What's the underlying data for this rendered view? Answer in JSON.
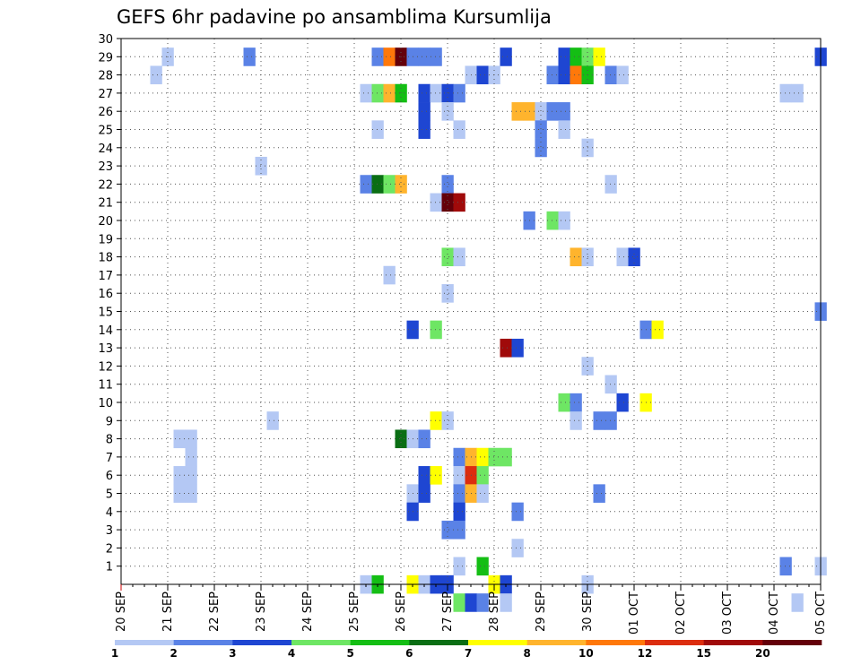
{
  "chart_data": {
    "type": "heatmap",
    "title": "GEFS 6hr padavine po ansamblima Kursumlija",
    "xlabel": "",
    "ylabel": "",
    "x_tick_labels": [
      "20 SEP",
      "21 SEP",
      "22 SEP",
      "23 SEP",
      "24 SEP",
      "25 SEP",
      "26 SEP",
      "27 SEP",
      "28 SEP",
      "29 SEP",
      "30 SEP",
      "01 OCT",
      "02 OCT",
      "03 OCT",
      "04 OCT",
      "05 OCT"
    ],
    "y_tick_labels": [
      "1",
      "2",
      "3",
      "4",
      "5",
      "6",
      "7",
      "8",
      "9",
      "10",
      "11",
      "12",
      "13",
      "14",
      "15",
      "16",
      "17",
      "18",
      "19",
      "20",
      "21",
      "22",
      "23",
      "24",
      "25",
      "26",
      "27",
      "28",
      "29",
      "30"
    ],
    "x_step_hours": 6,
    "ylim": [
      0,
      30
    ],
    "grid": true,
    "colorbar": {
      "labels": [
        "1",
        "2",
        "3",
        "4",
        "5",
        "6",
        "7",
        "8",
        "10",
        "12",
        "15",
        "20"
      ],
      "colors": [
        "#b4c8f4",
        "#5a82e6",
        "#1e46d2",
        "#6ee664",
        "#14be14",
        "#0a6e14",
        "#ffff00",
        "#ffb42d",
        "#ff780a",
        "#dc2d0f",
        "#a00a0a",
        "#64000a"
      ]
    },
    "cells": [
      {
        "member": 29,
        "step": 4,
        "level": 1
      },
      {
        "member": 29,
        "step": 11,
        "level": 2
      },
      {
        "member": 29,
        "step": 22,
        "level": 2
      },
      {
        "member": 29,
        "step": 23,
        "level": 9
      },
      {
        "member": 29,
        "step": 24,
        "level": 12
      },
      {
        "member": 29,
        "step": 25,
        "level": 2
      },
      {
        "member": 29,
        "step": 26,
        "level": 2
      },
      {
        "member": 29,
        "step": 27,
        "level": 2
      },
      {
        "member": 29,
        "step": 33,
        "level": 3
      },
      {
        "member": 29,
        "step": 38,
        "level": 3
      },
      {
        "member": 29,
        "step": 39,
        "level": 5
      },
      {
        "member": 29,
        "step": 40,
        "level": 4
      },
      {
        "member": 29,
        "step": 41,
        "level": 7
      },
      {
        "member": 29,
        "step": 60,
        "level": 3
      },
      {
        "member": 28,
        "step": 3,
        "level": 1
      },
      {
        "member": 28,
        "step": 30,
        "level": 1
      },
      {
        "member": 28,
        "step": 31,
        "level": 3
      },
      {
        "member": 28,
        "step": 32,
        "level": 1
      },
      {
        "member": 28,
        "step": 37,
        "level": 2
      },
      {
        "member": 28,
        "step": 38,
        "level": 3
      },
      {
        "member": 28,
        "step": 39,
        "level": 9
      },
      {
        "member": 28,
        "step": 40,
        "level": 5
      },
      {
        "member": 28,
        "step": 42,
        "level": 2
      },
      {
        "member": 28,
        "step": 43,
        "level": 1
      },
      {
        "member": 27,
        "step": 21,
        "level": 1
      },
      {
        "member": 27,
        "step": 22,
        "level": 4
      },
      {
        "member": 27,
        "step": 23,
        "level": 8
      },
      {
        "member": 27,
        "step": 24,
        "level": 5
      },
      {
        "member": 27,
        "step": 26,
        "level": 3
      },
      {
        "member": 27,
        "step": 27,
        "level": 1
      },
      {
        "member": 27,
        "step": 28,
        "level": 3
      },
      {
        "member": 27,
        "step": 29,
        "level": 2
      },
      {
        "member": 27,
        "step": 57,
        "level": 1
      },
      {
        "member": 27,
        "step": 58,
        "level": 1
      },
      {
        "member": 26,
        "step": 26,
        "level": 3
      },
      {
        "member": 26,
        "step": 28,
        "level": 1
      },
      {
        "member": 26,
        "step": 34,
        "level": 8
      },
      {
        "member": 26,
        "step": 35,
        "level": 8
      },
      {
        "member": 26,
        "step": 36,
        "level": 1
      },
      {
        "member": 26,
        "step": 37,
        "level": 2
      },
      {
        "member": 26,
        "step": 38,
        "level": 2
      },
      {
        "member": 25,
        "step": 22,
        "level": 1
      },
      {
        "member": 25,
        "step": 26,
        "level": 3
      },
      {
        "member": 25,
        "step": 29,
        "level": 1
      },
      {
        "member": 25,
        "step": 36,
        "level": 2
      },
      {
        "member": 25,
        "step": 38,
        "level": 1
      },
      {
        "member": 24,
        "step": 36,
        "level": 2
      },
      {
        "member": 24,
        "step": 40,
        "level": 1
      },
      {
        "member": 23,
        "step": 12,
        "level": 1
      },
      {
        "member": 22,
        "step": 21,
        "level": 2
      },
      {
        "member": 22,
        "step": 22,
        "level": 6
      },
      {
        "member": 22,
        "step": 23,
        "level": 4
      },
      {
        "member": 22,
        "step": 24,
        "level": 8
      },
      {
        "member": 22,
        "step": 28,
        "level": 2
      },
      {
        "member": 22,
        "step": 42,
        "level": 1
      },
      {
        "member": 21,
        "step": 27,
        "level": 1
      },
      {
        "member": 21,
        "step": 28,
        "level": 12
      },
      {
        "member": 21,
        "step": 29,
        "level": 11
      },
      {
        "member": 20,
        "step": 35,
        "level": 2
      },
      {
        "member": 20,
        "step": 37,
        "level": 4
      },
      {
        "member": 20,
        "step": 38,
        "level": 1
      },
      {
        "member": 18,
        "step": 28,
        "level": 4
      },
      {
        "member": 18,
        "step": 29,
        "level": 1
      },
      {
        "member": 18,
        "step": 39,
        "level": 8
      },
      {
        "member": 18,
        "step": 40,
        "level": 1
      },
      {
        "member": 18,
        "step": 43,
        "level": 1
      },
      {
        "member": 18,
        "step": 44,
        "level": 3
      },
      {
        "member": 17,
        "step": 23,
        "level": 1
      },
      {
        "member": 16,
        "step": 28,
        "level": 1
      },
      {
        "member": 15,
        "step": 60,
        "level": 2
      },
      {
        "member": 14,
        "step": 25,
        "level": 3
      },
      {
        "member": 14,
        "step": 27,
        "level": 4
      },
      {
        "member": 14,
        "step": 45,
        "level": 2
      },
      {
        "member": 14,
        "step": 46,
        "level": 7
      },
      {
        "member": 13,
        "step": 33,
        "level": 11
      },
      {
        "member": 13,
        "step": 34,
        "level": 3
      },
      {
        "member": 12,
        "step": 40,
        "level": 1
      },
      {
        "member": 11,
        "step": 42,
        "level": 1
      },
      {
        "member": 10,
        "step": 38,
        "level": 4
      },
      {
        "member": 10,
        "step": 39,
        "level": 2
      },
      {
        "member": 10,
        "step": 43,
        "level": 3
      },
      {
        "member": 10,
        "step": 45,
        "level": 7
      },
      {
        "member": 9,
        "step": 13,
        "level": 1
      },
      {
        "member": 9,
        "step": 27,
        "level": 7
      },
      {
        "member": 9,
        "step": 28,
        "level": 1
      },
      {
        "member": 9,
        "step": 39,
        "level": 1
      },
      {
        "member": 9,
        "step": 41,
        "level": 2
      },
      {
        "member": 9,
        "step": 42,
        "level": 2
      },
      {
        "member": 8,
        "step": 5,
        "level": 1
      },
      {
        "member": 8,
        "step": 6,
        "level": 1
      },
      {
        "member": 8,
        "step": 24,
        "level": 6
      },
      {
        "member": 8,
        "step": 25,
        "level": 1
      },
      {
        "member": 8,
        "step": 26,
        "level": 2
      },
      {
        "member": 7,
        "step": 6,
        "level": 1
      },
      {
        "member": 7,
        "step": 29,
        "level": 2
      },
      {
        "member": 7,
        "step": 30,
        "level": 8
      },
      {
        "member": 7,
        "step": 31,
        "level": 7
      },
      {
        "member": 7,
        "step": 32,
        "level": 4
      },
      {
        "member": 7,
        "step": 33,
        "level": 4
      },
      {
        "member": 6,
        "step": 5,
        "level": 1
      },
      {
        "member": 6,
        "step": 6,
        "level": 1
      },
      {
        "member": 6,
        "step": 26,
        "level": 3
      },
      {
        "member": 6,
        "step": 27,
        "level": 7
      },
      {
        "member": 6,
        "step": 29,
        "level": 1
      },
      {
        "member": 6,
        "step": 30,
        "level": 10
      },
      {
        "member": 6,
        "step": 31,
        "level": 4
      },
      {
        "member": 5,
        "step": 5,
        "level": 1
      },
      {
        "member": 5,
        "step": 6,
        "level": 1
      },
      {
        "member": 5,
        "step": 25,
        "level": 1
      },
      {
        "member": 5,
        "step": 26,
        "level": 3
      },
      {
        "member": 5,
        "step": 29,
        "level": 2
      },
      {
        "member": 5,
        "step": 30,
        "level": 8
      },
      {
        "member": 5,
        "step": 31,
        "level": 1
      },
      {
        "member": 5,
        "step": 41,
        "level": 2
      },
      {
        "member": 4,
        "step": 25,
        "level": 3
      },
      {
        "member": 4,
        "step": 29,
        "level": 3
      },
      {
        "member": 4,
        "step": 34,
        "level": 2
      },
      {
        "member": 3,
        "step": 28,
        "level": 2
      },
      {
        "member": 3,
        "step": 29,
        "level": 2
      },
      {
        "member": 2,
        "step": 34,
        "level": 1
      },
      {
        "member": 1,
        "step": 29,
        "level": 1
      },
      {
        "member": 1,
        "step": 31,
        "level": 5
      },
      {
        "member": 1,
        "step": 57,
        "level": 2
      },
      {
        "member": 1,
        "step": 60,
        "level": 1
      },
      {
        "member": 0,
        "step": 21,
        "level": 1
      },
      {
        "member": 0,
        "step": 22,
        "level": 5
      },
      {
        "member": 0,
        "step": 25,
        "level": 7
      },
      {
        "member": 0,
        "step": 26,
        "level": 1
      },
      {
        "member": 0,
        "step": 27,
        "level": 3
      },
      {
        "member": 0,
        "step": 28,
        "level": 3
      },
      {
        "member": 0,
        "step": 32,
        "level": 7
      },
      {
        "member": 0,
        "step": 33,
        "level": 3
      },
      {
        "member": 0,
        "step": 40,
        "level": 1
      },
      {
        "member": -1,
        "step": 29,
        "level": 4
      },
      {
        "member": -1,
        "step": 30,
        "level": 3
      },
      {
        "member": -1,
        "step": 31,
        "level": 2
      },
      {
        "member": -1,
        "step": 33,
        "level": 1
      },
      {
        "member": -1,
        "step": 58,
        "level": 1
      }
    ]
  }
}
